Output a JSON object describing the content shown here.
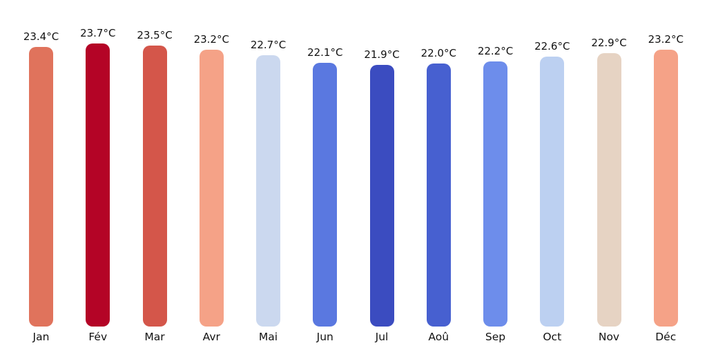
{
  "chart_data": {
    "type": "bar",
    "title": "",
    "xlabel": "",
    "ylabel": "",
    "unit": "°C",
    "categories": [
      "Jan",
      "Fév",
      "Mar",
      "Avr",
      "Mai",
      "Jun",
      "Jul",
      "Aoû",
      "Sep",
      "Oct",
      "Nov",
      "Déc"
    ],
    "values": [
      23.4,
      23.7,
      23.5,
      23.2,
      22.7,
      22.1,
      21.9,
      22.0,
      22.2,
      22.6,
      22.9,
      23.2
    ],
    "value_labels": [
      "23.4°C",
      "23.7°C",
      "23.5°C",
      "23.2°C",
      "22.7°C",
      "22.1°C",
      "21.9°C",
      "22.0°C",
      "22.2°C",
      "22.6°C",
      "22.9°C",
      "23.2°C"
    ],
    "bar_colors": [
      "#e0735c",
      "#b40426",
      "#d4564a",
      "#f5a287",
      "#cbd8ef",
      "#5a78e0",
      "#3b4cc0",
      "#4760d0",
      "#6d8deb",
      "#bcd0f1",
      "#e6d3c3",
      "#f5a287"
    ],
    "ylim": [
      0,
      24.4
    ],
    "grid": false,
    "legend": null,
    "axes_visible": false,
    "colormap": "coolwarm diverging (blue = coolest months, red = warmest months)",
    "background_color": "#ffffff",
    "text_color": "#111111"
  }
}
